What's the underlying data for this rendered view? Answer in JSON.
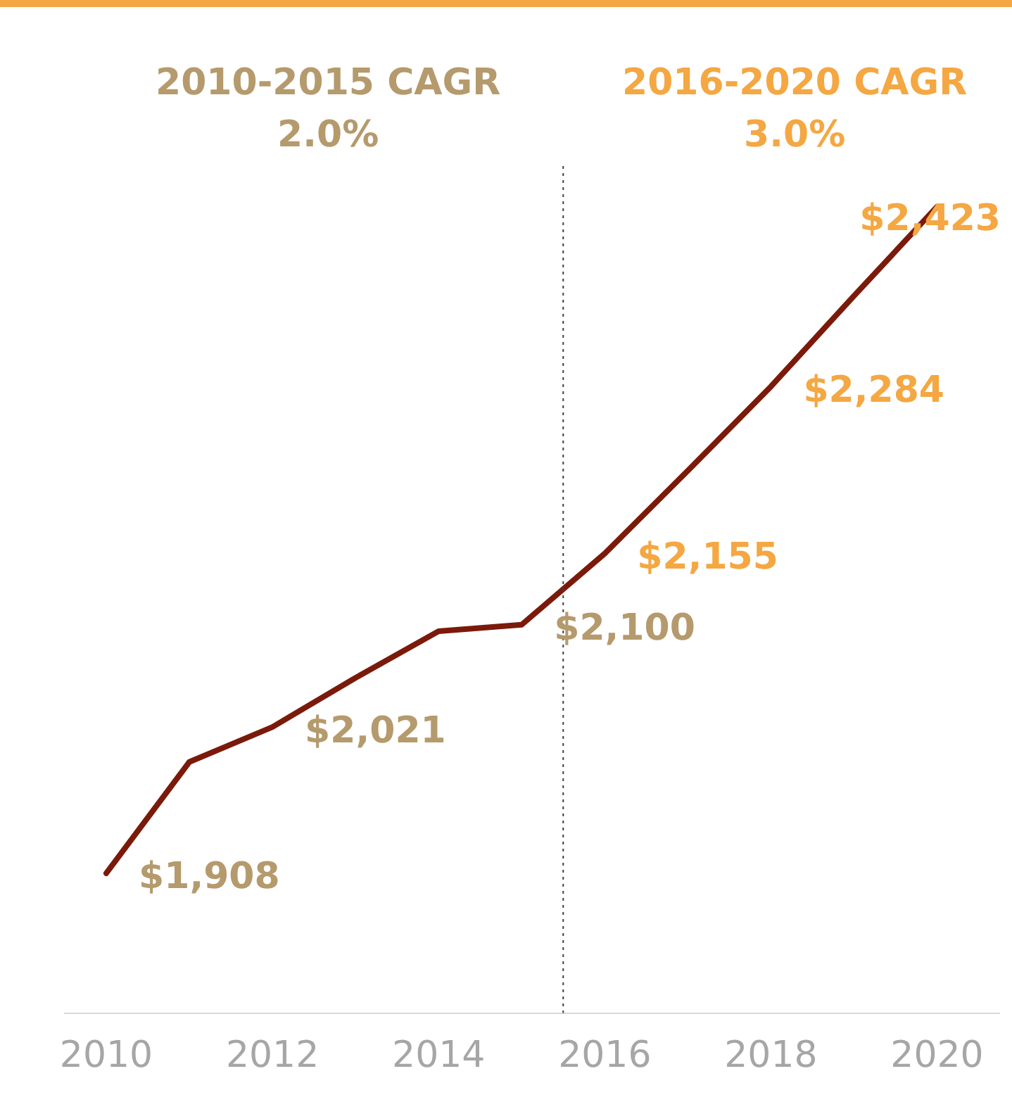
{
  "chart_data": {
    "type": "line",
    "x": [
      2010,
      2011,
      2012,
      2013,
      2014,
      2015,
      2016,
      2017,
      2018,
      2019,
      2020
    ],
    "series": [
      {
        "color": "#7b1a0a",
        "values": [
          1908,
          1994,
          2021,
          2059,
          2095,
          2100,
          2155,
          2219,
          2284,
          2354,
          2423
        ],
        "value_labels": [
          "$1,908",
          null,
          "$2,021",
          null,
          null,
          "$2,100",
          "$2,155",
          null,
          "$2,284",
          null,
          "$2,423"
        ],
        "colors": [
          "#b59a6d",
          null,
          "#b59a6d",
          null,
          null,
          "#b59a6d",
          "#f4a742",
          null,
          "#f4a742",
          null,
          "#f4a742"
        ]
      }
    ],
    "xlim": [
      2009.5,
      2020.75
    ],
    "xticks": [
      2010,
      2012,
      2014,
      2016,
      2018,
      2020
    ],
    "tick_labels": "x",
    "grid": false,
    "legend": false,
    "marker": "none",
    "line_style": "solid",
    "ref_lines": [
      {
        "axis": "x",
        "value": 2015.5,
        "color": "#404040",
        "line_style": "dotted"
      }
    ],
    "annotations": [
      "2010-2015 CAGR\n2.0%",
      "2016-2020 CAGR\n3.0%"
    ]
  }
}
